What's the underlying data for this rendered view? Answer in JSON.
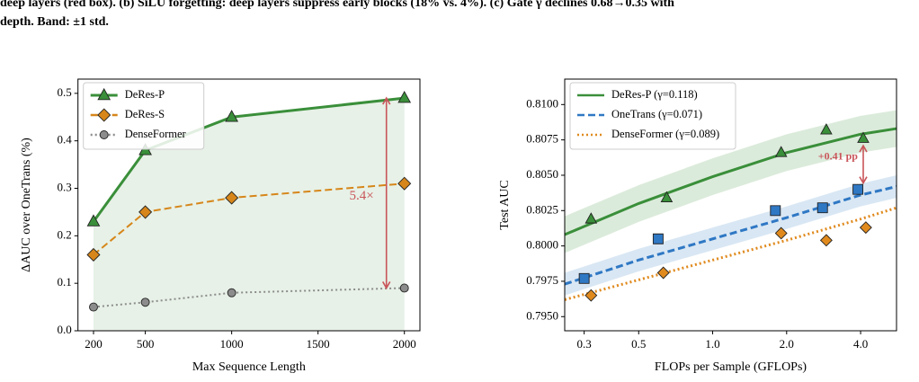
{
  "caption": [
    "deep layers (red box). (b) SiLU forgetting: deep layers suppress early blocks (18% vs. 4%). (c) Gate γ declines 0.68→0.35 with",
    "depth. Band: ±1 std."
  ],
  "chart_data": [
    {
      "type": "line",
      "x": [
        200,
        500,
        1000,
        2000
      ],
      "xlim": [
        110,
        2090
      ],
      "xticks": [
        200,
        500,
        1000,
        1500,
        2000
      ],
      "ylim": [
        0,
        0.53
      ],
      "yticks": [
        {
          "value": 0,
          "label": "0.0"
        },
        0.1,
        0.2,
        0.3,
        0.4,
        0.5
      ],
      "xlabel": "Max Sequence Length",
      "ylabel": "ΔAUC over OneTrans (%)",
      "grid": false,
      "legend": "upper left",
      "annotation": "5.4×",
      "annotation_color": "#c9555a",
      "series": [
        {
          "name": "DeRes-P",
          "color": "#3a8f3a",
          "linestyle": "solid",
          "marker": "triangle",
          "values": [
            0.23,
            0.38,
            0.45,
            0.49
          ]
        },
        {
          "name": "DeRes-S",
          "color": "#d6861a",
          "linestyle": "dashed",
          "marker": "diamond",
          "values": [
            0.16,
            0.25,
            0.28,
            0.31
          ]
        },
        {
          "name": "DenseFormer",
          "color": "#8c8c8c",
          "linestyle": "dotted",
          "marker": "circle",
          "values": [
            0.05,
            0.06,
            0.08,
            0.09
          ]
        }
      ]
    },
    {
      "type": "scatter",
      "log_x": true,
      "xlim": [
        0.25,
        5.6
      ],
      "xticks": [
        0.3,
        0.5,
        {
          "value": 1,
          "label": "1.0"
        },
        {
          "value": 2,
          "label": "2.0"
        },
        {
          "value": 4,
          "label": "4.0"
        }
      ],
      "ylim": [
        0.794,
        0.8118
      ],
      "yticks": [
        {
          "value": 0.795,
          "label": "0.7950"
        },
        {
          "value": 0.7975,
          "label": "0.7975"
        },
        {
          "value": 0.8,
          "label": "0.8000"
        },
        {
          "value": 0.8025,
          "label": "0.8025"
        },
        {
          "value": 0.805,
          "label": "0.8050"
        },
        {
          "value": 0.8075,
          "label": "0.8075"
        },
        {
          "value": 0.81,
          "label": "0.8100"
        }
      ],
      "xlabel": "FLOPs per Sample (GFLOPs)",
      "ylabel": "Test AUC",
      "grid": false,
      "legend": "upper left",
      "annotation": "+0.41 pp",
      "annotation_color": "#c9555a",
      "series": [
        {
          "name": "DeRes-P (γ=0.118)",
          "color": "#3a8f3a",
          "linestyle": "solid",
          "marker": "triangle",
          "x": [
            0.25,
            0.5,
            1,
            2,
            4,
            5.6
          ],
          "values": [
            0.8008,
            0.803,
            0.8049,
            0.8066,
            0.8079,
            0.8083
          ],
          "lower": [
            0.7995,
            0.8017,
            0.8036,
            0.8053,
            0.8066,
            0.807
          ],
          "upper": [
            0.8021,
            0.8043,
            0.8062,
            0.8079,
            0.8092,
            0.8096
          ],
          "points_x": [
            0.32,
            0.65,
            1.9,
            2.9,
            4.1
          ],
          "points_y": [
            0.8019,
            0.8034,
            0.8066,
            0.8082,
            0.8076
          ]
        },
        {
          "name": "OneTrans (γ=0.071)",
          "color": "#2f78c4",
          "linestyle": "dashed",
          "marker": "square",
          "x": [
            0.25,
            0.5,
            1,
            2,
            4,
            5.6
          ],
          "values": [
            0.7973,
            0.799,
            0.8005,
            0.802,
            0.8036,
            0.8042
          ],
          "lower": [
            0.7965,
            0.7982,
            0.7997,
            0.8012,
            0.8028,
            0.8034
          ],
          "upper": [
            0.7981,
            0.7998,
            0.8013,
            0.8028,
            0.8044,
            0.805
          ],
          "points_x": [
            0.3,
            0.6,
            1.8,
            2.8,
            3.9
          ],
          "points_y": [
            0.7977,
            0.8005,
            0.8025,
            0.8027,
            0.804
          ]
        },
        {
          "name": "DenseFormer (γ=0.089)",
          "color": "#e08a1e",
          "linestyle": "dotted",
          "marker": "diamond",
          "x": [
            0.25,
            0.5,
            1,
            2,
            4,
            5.6
          ],
          "values": [
            0.7962,
            0.7976,
            0.799,
            0.8004,
            0.8019,
            0.8027
          ],
          "points_x": [
            0.32,
            0.63,
            1.9,
            2.9,
            4.2
          ],
          "points_y": [
            0.7965,
            0.7981,
            0.8009,
            0.8004,
            0.8013
          ]
        }
      ]
    }
  ]
}
